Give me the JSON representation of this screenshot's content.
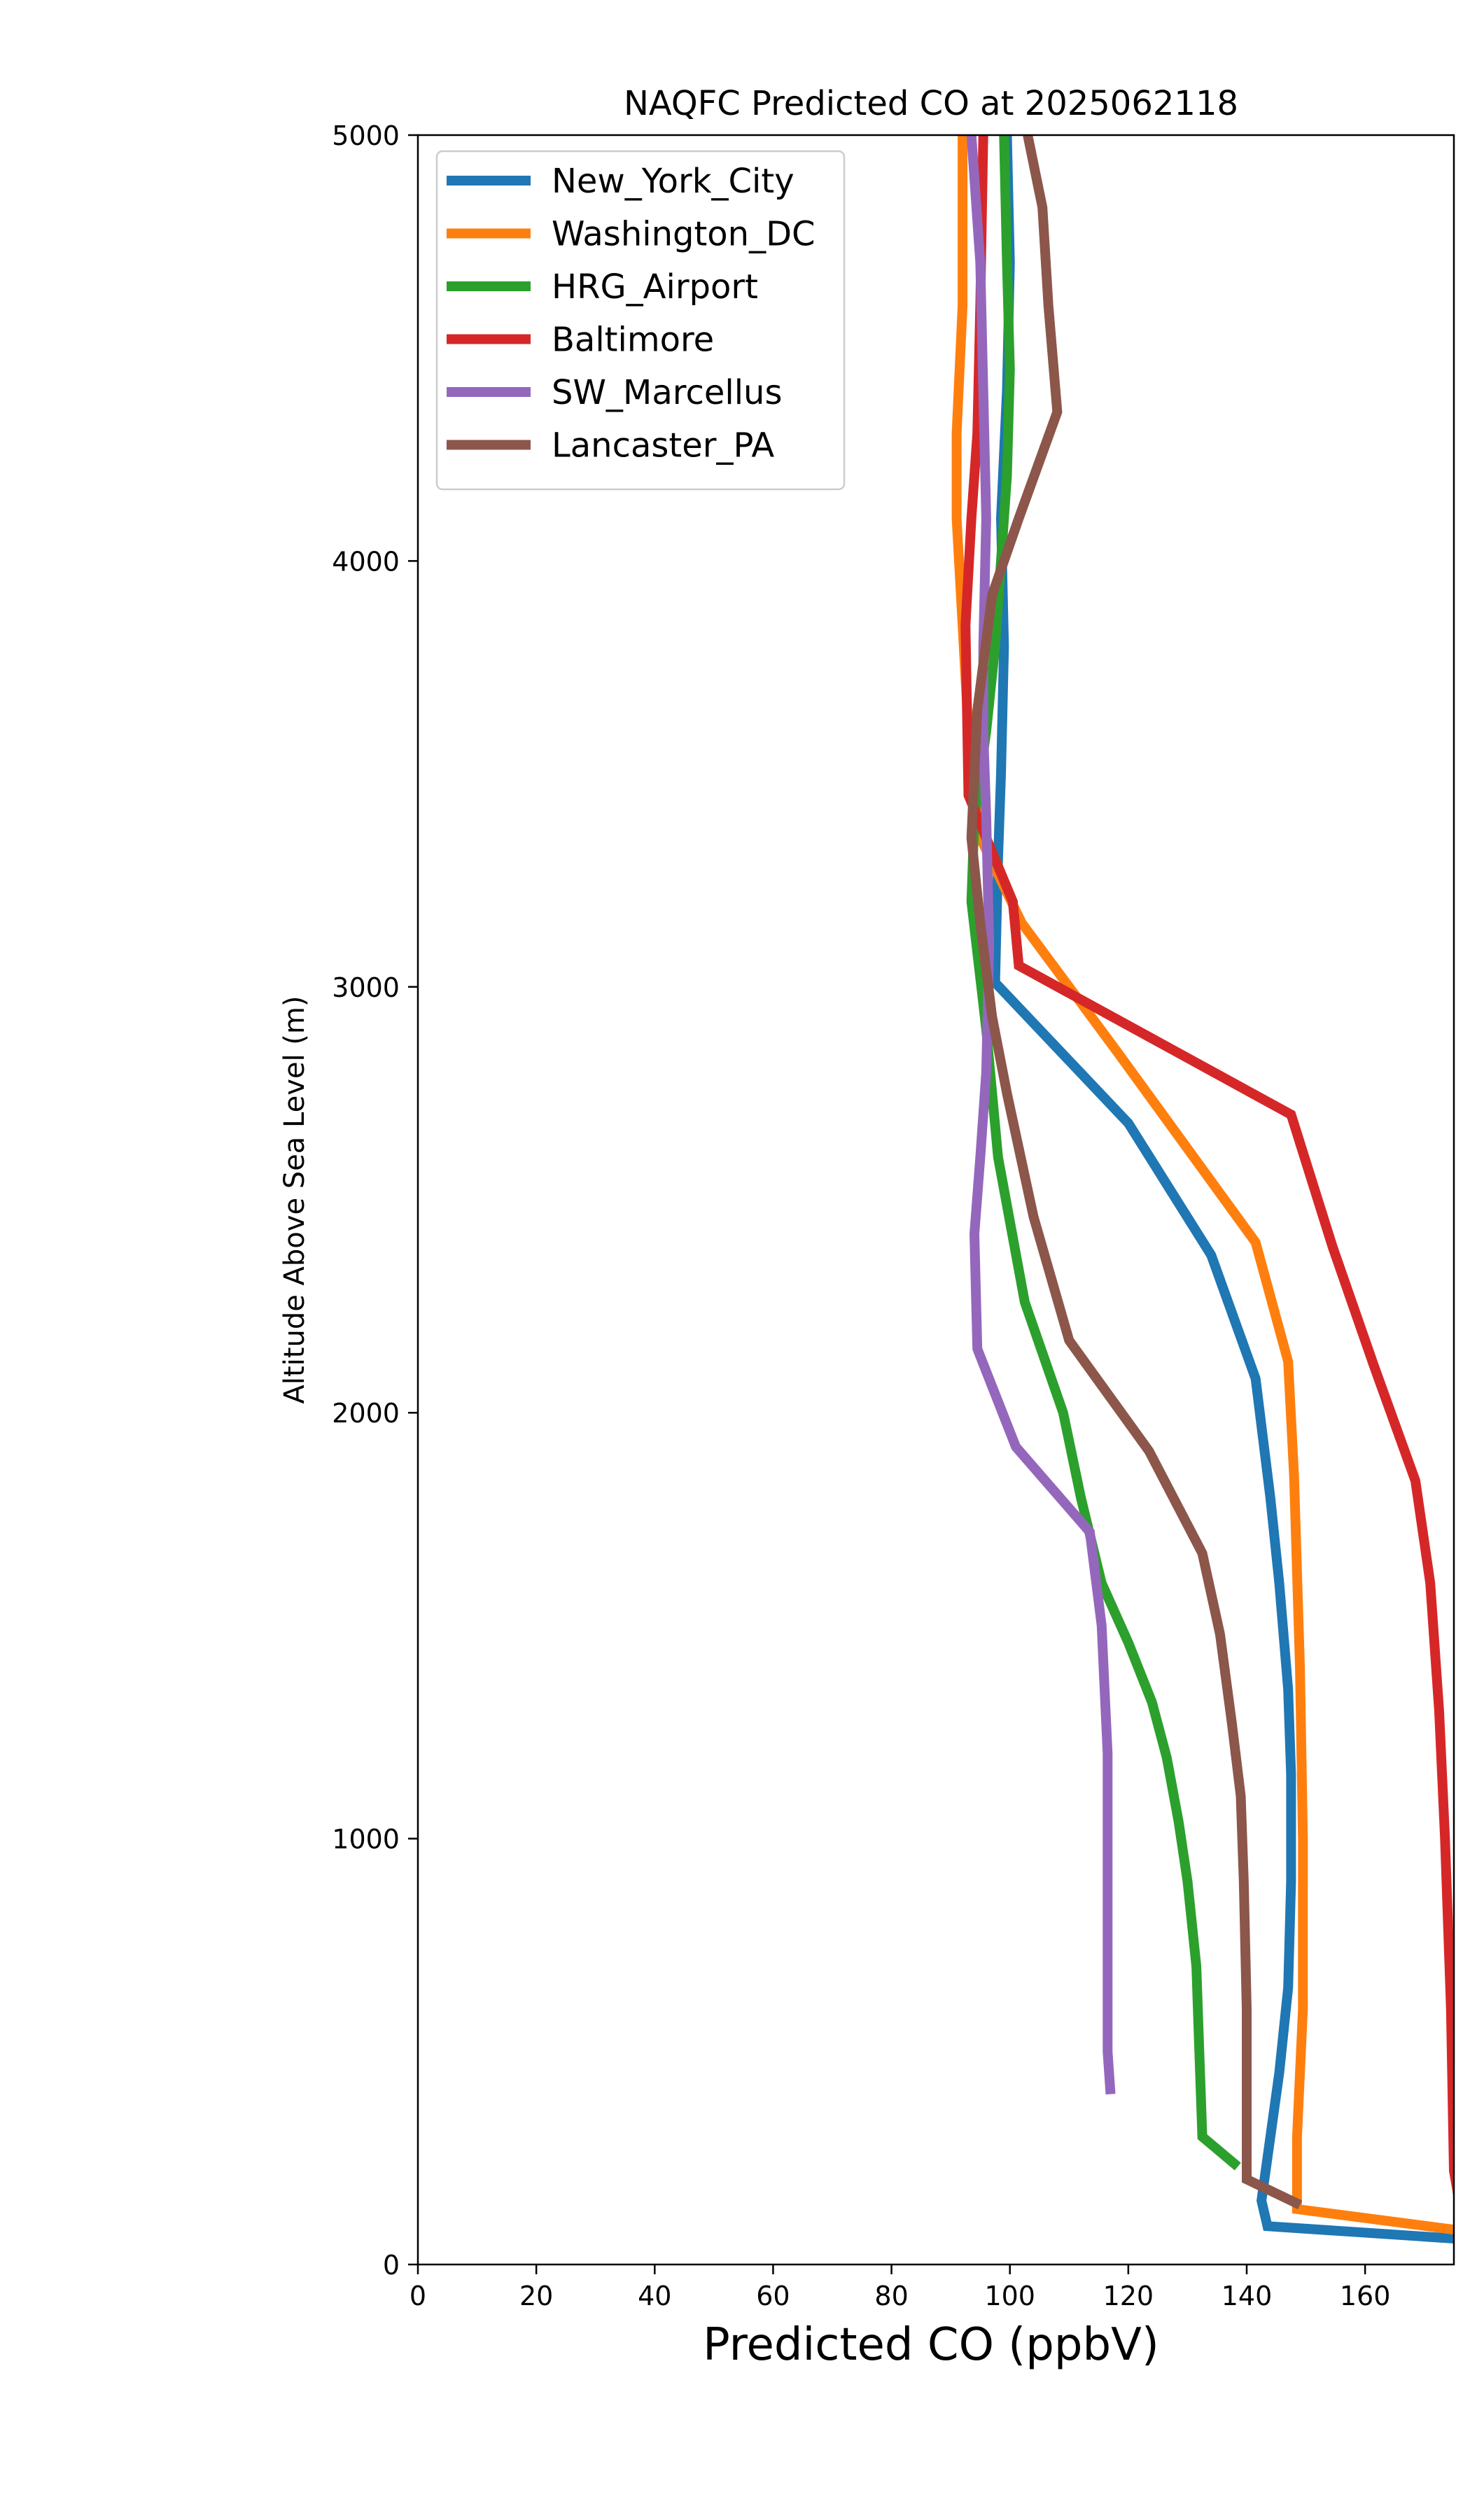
{
  "chart_data": {
    "type": "line",
    "title": "NAQFC Predicted CO at 2025062118",
    "xlabel": "Predicted CO (ppbV)",
    "ylabel": "Altitude Above Sea Level (m)",
    "xlim": [
      0,
      175
    ],
    "ylim": [
      0,
      5000
    ],
    "xticks": [
      "0",
      "20",
      "40",
      "60",
      "80",
      "100",
      "120",
      "140",
      "160"
    ],
    "yticks": [
      "0",
      "1000",
      "2000",
      "3000",
      "4000",
      "5000"
    ],
    "grid": false,
    "legend_position": "top-left",
    "series": [
      {
        "name": "New_York_City",
        "color": "#1f77b4",
        "points": [
          [
            176,
            60
          ],
          [
            143.5,
            90
          ],
          [
            142.5,
            150
          ],
          [
            143.5,
            250
          ],
          [
            145.5,
            450
          ],
          [
            147,
            650
          ],
          [
            147.5,
            900
          ],
          [
            147.5,
            1150
          ],
          [
            147,
            1350
          ],
          [
            145.5,
            1600
          ],
          [
            144,
            1800
          ],
          [
            141.5,
            2080
          ],
          [
            134,
            2370
          ],
          [
            120,
            2680
          ],
          [
            97.5,
            3010
          ],
          [
            98,
            3300
          ],
          [
            98.5,
            3500
          ],
          [
            99,
            3800
          ],
          [
            98.5,
            4100
          ],
          [
            99.5,
            4400
          ],
          [
            100,
            4700
          ],
          [
            99.5,
            5000
          ]
        ]
      },
      {
        "name": "Washington_DC",
        "color": "#ff7f0e",
        "points": [
          [
            176,
            80
          ],
          [
            148.5,
            130
          ],
          [
            148.5,
            300
          ],
          [
            149.5,
            600
          ],
          [
            149.5,
            1000
          ],
          [
            149,
            1400
          ],
          [
            148,
            1850
          ],
          [
            147,
            2120
          ],
          [
            141.5,
            2400
          ],
          [
            118,
            2850
          ],
          [
            102,
            3150
          ],
          [
            95,
            3350
          ],
          [
            93,
            3600
          ],
          [
            92,
            3850
          ],
          [
            91,
            4100
          ],
          [
            91,
            4300
          ],
          [
            92,
            4600
          ],
          [
            92,
            5000
          ]
        ]
      },
      {
        "name": "HRG_Airport",
        "color": "#2ca02c",
        "points": [
          [
            138.5,
            230
          ],
          [
            132.5,
            300
          ],
          [
            132,
            500
          ],
          [
            131.5,
            700
          ],
          [
            130,
            900
          ],
          [
            128.5,
            1040
          ],
          [
            126.5,
            1190
          ],
          [
            124,
            1320
          ],
          [
            120,
            1460
          ],
          [
            115.5,
            1600
          ],
          [
            112,
            1800
          ],
          [
            109,
            2000
          ],
          [
            102.5,
            2260
          ],
          [
            98,
            2600
          ],
          [
            96,
            2900
          ],
          [
            93.5,
            3200
          ],
          [
            94,
            3400
          ],
          [
            96,
            3600
          ],
          [
            97.5,
            3800
          ],
          [
            98.5,
            4000
          ],
          [
            99.5,
            4200
          ],
          [
            100,
            4450
          ],
          [
            99.5,
            4700
          ],
          [
            99,
            5000
          ]
        ]
      },
      {
        "name": "Baltimore",
        "color": "#d62728",
        "points": [
          [
            176,
            140
          ],
          [
            175,
            220
          ],
          [
            174.5,
            600
          ],
          [
            173.5,
            1000
          ],
          [
            172.5,
            1300
          ],
          [
            171,
            1600
          ],
          [
            168.5,
            1840
          ],
          [
            161.5,
            2110
          ],
          [
            154.5,
            2390
          ],
          [
            147.5,
            2700
          ],
          [
            101.5,
            3050
          ],
          [
            100.5,
            3200
          ],
          [
            93,
            3450
          ],
          [
            92.5,
            3850
          ],
          [
            93.5,
            4100
          ],
          [
            94.5,
            4300
          ],
          [
            95,
            4600
          ],
          [
            95.5,
            5000
          ]
        ]
      },
      {
        "name": "SW_Marcellus",
        "color": "#9467bd",
        "points": [
          [
            117,
            400
          ],
          [
            116.5,
            500
          ],
          [
            116.5,
            700
          ],
          [
            116.5,
            1000
          ],
          [
            116.5,
            1200
          ],
          [
            116,
            1350
          ],
          [
            115.5,
            1500
          ],
          [
            113.5,
            1720
          ],
          [
            101,
            1920
          ],
          [
            94.5,
            2150
          ],
          [
            94,
            2420
          ],
          [
            95,
            2600
          ],
          [
            96,
            2800
          ],
          [
            96.5,
            3100
          ],
          [
            96,
            3400
          ],
          [
            95.5,
            3600
          ],
          [
            95.5,
            3800
          ],
          [
            96,
            4100
          ],
          [
            95.5,
            4400
          ],
          [
            95,
            4700
          ],
          [
            93.5,
            5000
          ]
        ]
      },
      {
        "name": "Lancaster_PA",
        "color": "#8c564b",
        "points": [
          [
            149,
            140
          ],
          [
            140,
            200
          ],
          [
            140,
            400
          ],
          [
            140,
            600
          ],
          [
            139.5,
            900
          ],
          [
            139,
            1100
          ],
          [
            137.5,
            1270
          ],
          [
            135.5,
            1480
          ],
          [
            132.5,
            1670
          ],
          [
            123.5,
            1910
          ],
          [
            110,
            2170
          ],
          [
            104,
            2460
          ],
          [
            99.5,
            2750
          ],
          [
            97,
            2930
          ],
          [
            95,
            3150
          ],
          [
            93.5,
            3350
          ],
          [
            94.5,
            3650
          ],
          [
            97,
            3920
          ],
          [
            101.5,
            4100
          ],
          [
            108,
            4350
          ],
          [
            106.5,
            4600
          ],
          [
            105.5,
            4830
          ],
          [
            103,
            5000
          ]
        ]
      }
    ]
  }
}
